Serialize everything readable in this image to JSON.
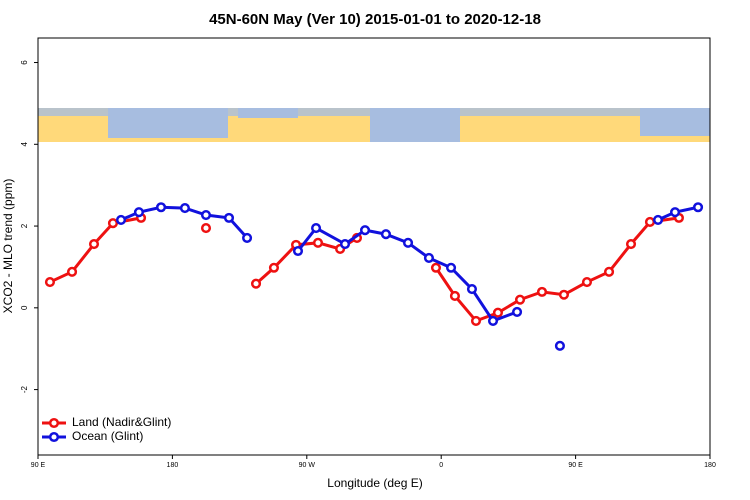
{
  "chart_data": {
    "type": "line",
    "title": "45N-60N May (Ver 10)   2015-01-01 to 2020-12-18",
    "x_label": "Longitude (deg E)",
    "y_label": "XCO2 - MLO trend (ppm)",
    "xlim": [
      90,
      540
    ],
    "ylim": [
      -3.6,
      6.6
    ],
    "xticks": [
      {
        "value": 90,
        "label": "90 E"
      },
      180,
      {
        "value": 270,
        "label": "90 W"
      },
      {
        "value": 360,
        "label": "0"
      },
      {
        "value": 450,
        "label": "90 E"
      },
      {
        "value": 540,
        "label": "180"
      }
    ],
    "yticks": [
      -2,
      0,
      2,
      4,
      6
    ],
    "legend": "bottom-left",
    "series": [
      {
        "name": "Land (Nadir&Glint)",
        "color": "#ee1111",
        "x": [
          98,
          112.8,
          127.5,
          140.2,
          159,
          null,
          202.5,
          null,
          236,
          248,
          262.8,
          277.5,
          292.3,
          303.6,
          null,
          356.5,
          369.2,
          383.3,
          398,
          412.8,
          427.5,
          442.2,
          457.6,
          472.4,
          487.1,
          499.8,
          519.2
        ],
        "values": [
          0.63,
          0.88,
          1.56,
          2.07,
          2.2,
          null,
          1.95,
          null,
          0.59,
          0.98,
          1.54,
          1.59,
          1.44,
          1.71,
          null,
          0.98,
          0.29,
          -0.32,
          -0.12,
          0.2,
          0.39,
          0.32,
          0.63,
          0.88,
          1.56,
          2.1,
          2.2
        ]
      },
      {
        "name": "Ocean (Glint)",
        "color": "#1111dd",
        "x": [
          145.6,
          157.6,
          172.4,
          188.4,
          202.5,
          217.9,
          230,
          null,
          264.1,
          276.2,
          295.6,
          309,
          323,
          337.8,
          351.8,
          366.6,
          380.6,
          394.7,
          410.8,
          null,
          439.5,
          null,
          505.2,
          516.6,
          532
        ],
        "values": [
          2.15,
          2.34,
          2.46,
          2.44,
          2.27,
          2.2,
          1.71,
          null,
          1.39,
          1.95,
          1.56,
          1.9,
          1.8,
          1.59,
          1.22,
          0.98,
          0.46,
          -0.32,
          -0.1,
          null,
          -0.93,
          null,
          2.15,
          2.34,
          2.46
        ]
      }
    ]
  }
}
